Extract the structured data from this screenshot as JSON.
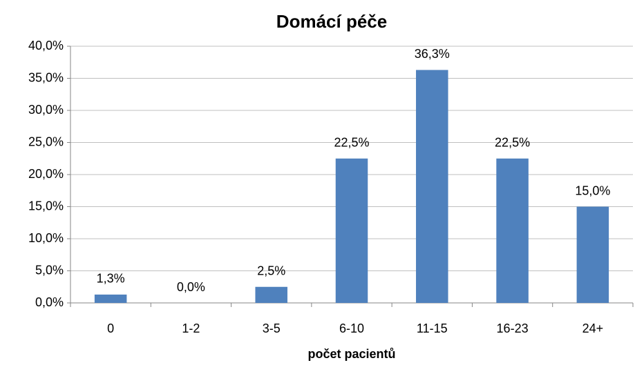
{
  "chart_data": {
    "type": "bar",
    "title": "Domácí péče",
    "x_label": "počet pacientů",
    "categories": [
      "0",
      "1-2",
      "3-5",
      "6-10",
      "11-15",
      "16-23",
      "24+"
    ],
    "values": [
      1.3,
      0,
      2.5,
      22.5,
      36.3,
      22.5,
      15.0
    ],
    "value_labels": [
      "1,3%",
      "0,0%",
      "2,5%",
      "22,5%",
      "36,3%",
      "22,5%",
      "15,0%"
    ],
    "color": "#4f81bd",
    "ylim": [
      0,
      40
    ],
    "yticks": [
      {
        "value": 0,
        "label": "0,0%"
      },
      {
        "value": 5,
        "label": "5,0%"
      },
      {
        "value": 10,
        "label": "10,0%"
      },
      {
        "value": 15,
        "label": "15,0%"
      },
      {
        "value": 20,
        "label": "20,0%"
      },
      {
        "value": 25,
        "label": "25,0%"
      },
      {
        "value": 30,
        "label": "30,0%"
      },
      {
        "value": 35,
        "label": "35,0%"
      },
      {
        "value": 40,
        "label": "40,0%"
      }
    ],
    "grid": true
  }
}
